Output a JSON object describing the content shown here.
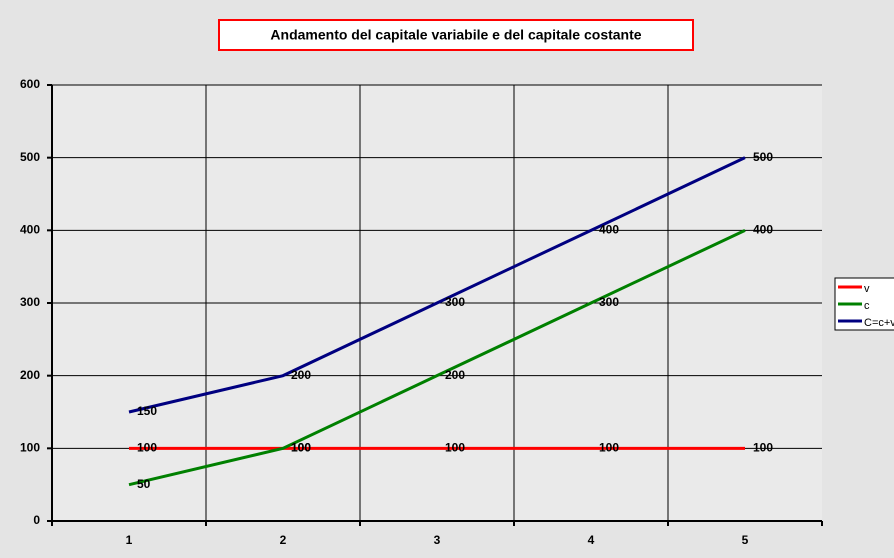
{
  "chart_data": {
    "type": "line",
    "title": "Andamento del capitale variabile e del capitale costante",
    "categories": [
      "1",
      "2",
      "3",
      "4",
      "5"
    ],
    "series": [
      {
        "name": "v",
        "color": "#ff0000",
        "values": [
          100,
          100,
          100,
          100,
          100
        ]
      },
      {
        "name": "c",
        "color": "#008000",
        "values": [
          50,
          100,
          200,
          300,
          400
        ]
      },
      {
        "name": "C=c+v",
        "color": "#000080",
        "values": [
          150,
          200,
          300,
          400,
          500
        ]
      }
    ],
    "ylim": [
      0,
      600
    ],
    "yticks": [
      0,
      100,
      200,
      300,
      400,
      500,
      600
    ],
    "grid": true,
    "data_labels": true,
    "legend": "right"
  }
}
